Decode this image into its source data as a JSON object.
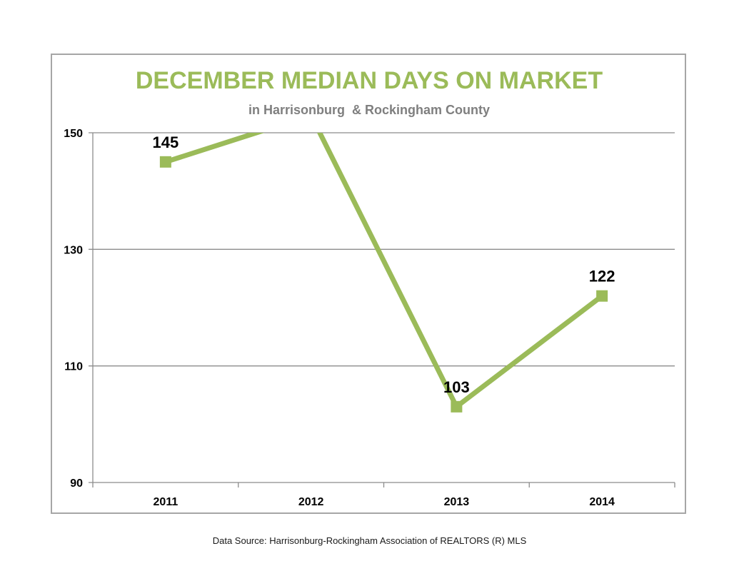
{
  "chart_data": {
    "type": "line",
    "title": "DECEMBER MEDIAN DAYS ON MARKET",
    "subtitle": "in Harrisonburg  & Rockingham County",
    "xlabel": "",
    "ylabel": "",
    "categories": [
      "2011",
      "2012",
      "2013",
      "2014"
    ],
    "series": [
      {
        "values": [
          145,
          153,
          103,
          122
        ],
        "data_labels": [
          "145",
          "",
          "103",
          "122"
        ]
      }
    ],
    "ylim": [
      90,
      150
    ],
    "yticks": [
      "90",
      "110",
      "130",
      "150"
    ],
    "grid": true,
    "legend": "none",
    "colors": {
      "line": "#9bbb59",
      "title": "#9bbb59",
      "subtitle": "#7f7f7f",
      "grid": "#8c8c8c",
      "text": "#000000"
    }
  },
  "footer": {
    "source": "Data Source: Harrisonburg-Rockingham Association of REALTORS (R) MLS"
  }
}
